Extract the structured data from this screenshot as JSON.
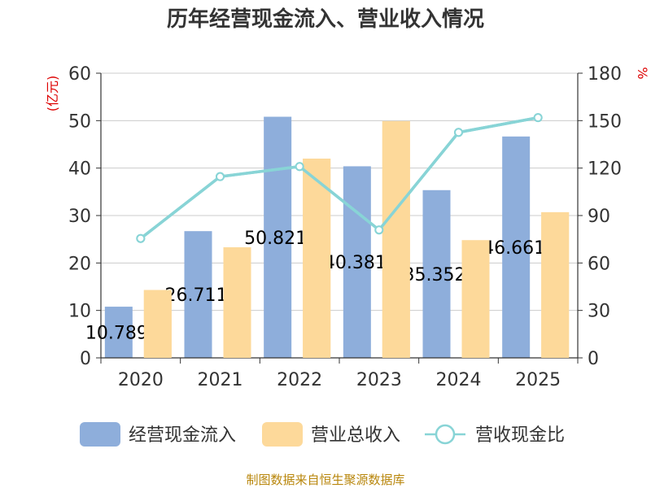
{
  "chart_data": {
    "type": "bar",
    "title": "历年经营现金流入、营业收入情况",
    "categories": [
      "2020",
      "2021",
      "2022",
      "2023",
      "2024",
      "2025"
    ],
    "left_axis": {
      "unit": "(亿元)",
      "ylim": [
        0,
        60
      ],
      "ticks": [
        "0",
        "10",
        "20",
        "30",
        "40",
        "50",
        "60"
      ]
    },
    "right_axis": {
      "unit": "%",
      "ylim": [
        0,
        180
      ],
      "ticks": [
        "0",
        "30",
        "60",
        "90",
        "120",
        "150",
        "180"
      ]
    },
    "series": [
      {
        "name": "经营现金流入",
        "type": "bar",
        "axis": "left",
        "color": "#8eaedb",
        "values": [
          10.789,
          26.711,
          50.821,
          40.381,
          35.352,
          46.661
        ],
        "labels": [
          "10.789",
          "26.711",
          "50.821",
          "40.381",
          "35.352",
          "46.661"
        ]
      },
      {
        "name": "营业总收入",
        "type": "bar",
        "axis": "left",
        "color": "#fdd99a",
        "values": [
          14.3,
          23.3,
          42.0,
          49.9,
          24.8,
          30.7
        ]
      },
      {
        "name": "营收现金比",
        "type": "line",
        "axis": "right",
        "color": "#88d4d6",
        "values": [
          75.5,
          114.6,
          121.0,
          80.9,
          142.6,
          151.9
        ]
      }
    ],
    "grid": true,
    "legend_position": "bottom"
  },
  "source": "制图数据来自恒生聚源数据库"
}
